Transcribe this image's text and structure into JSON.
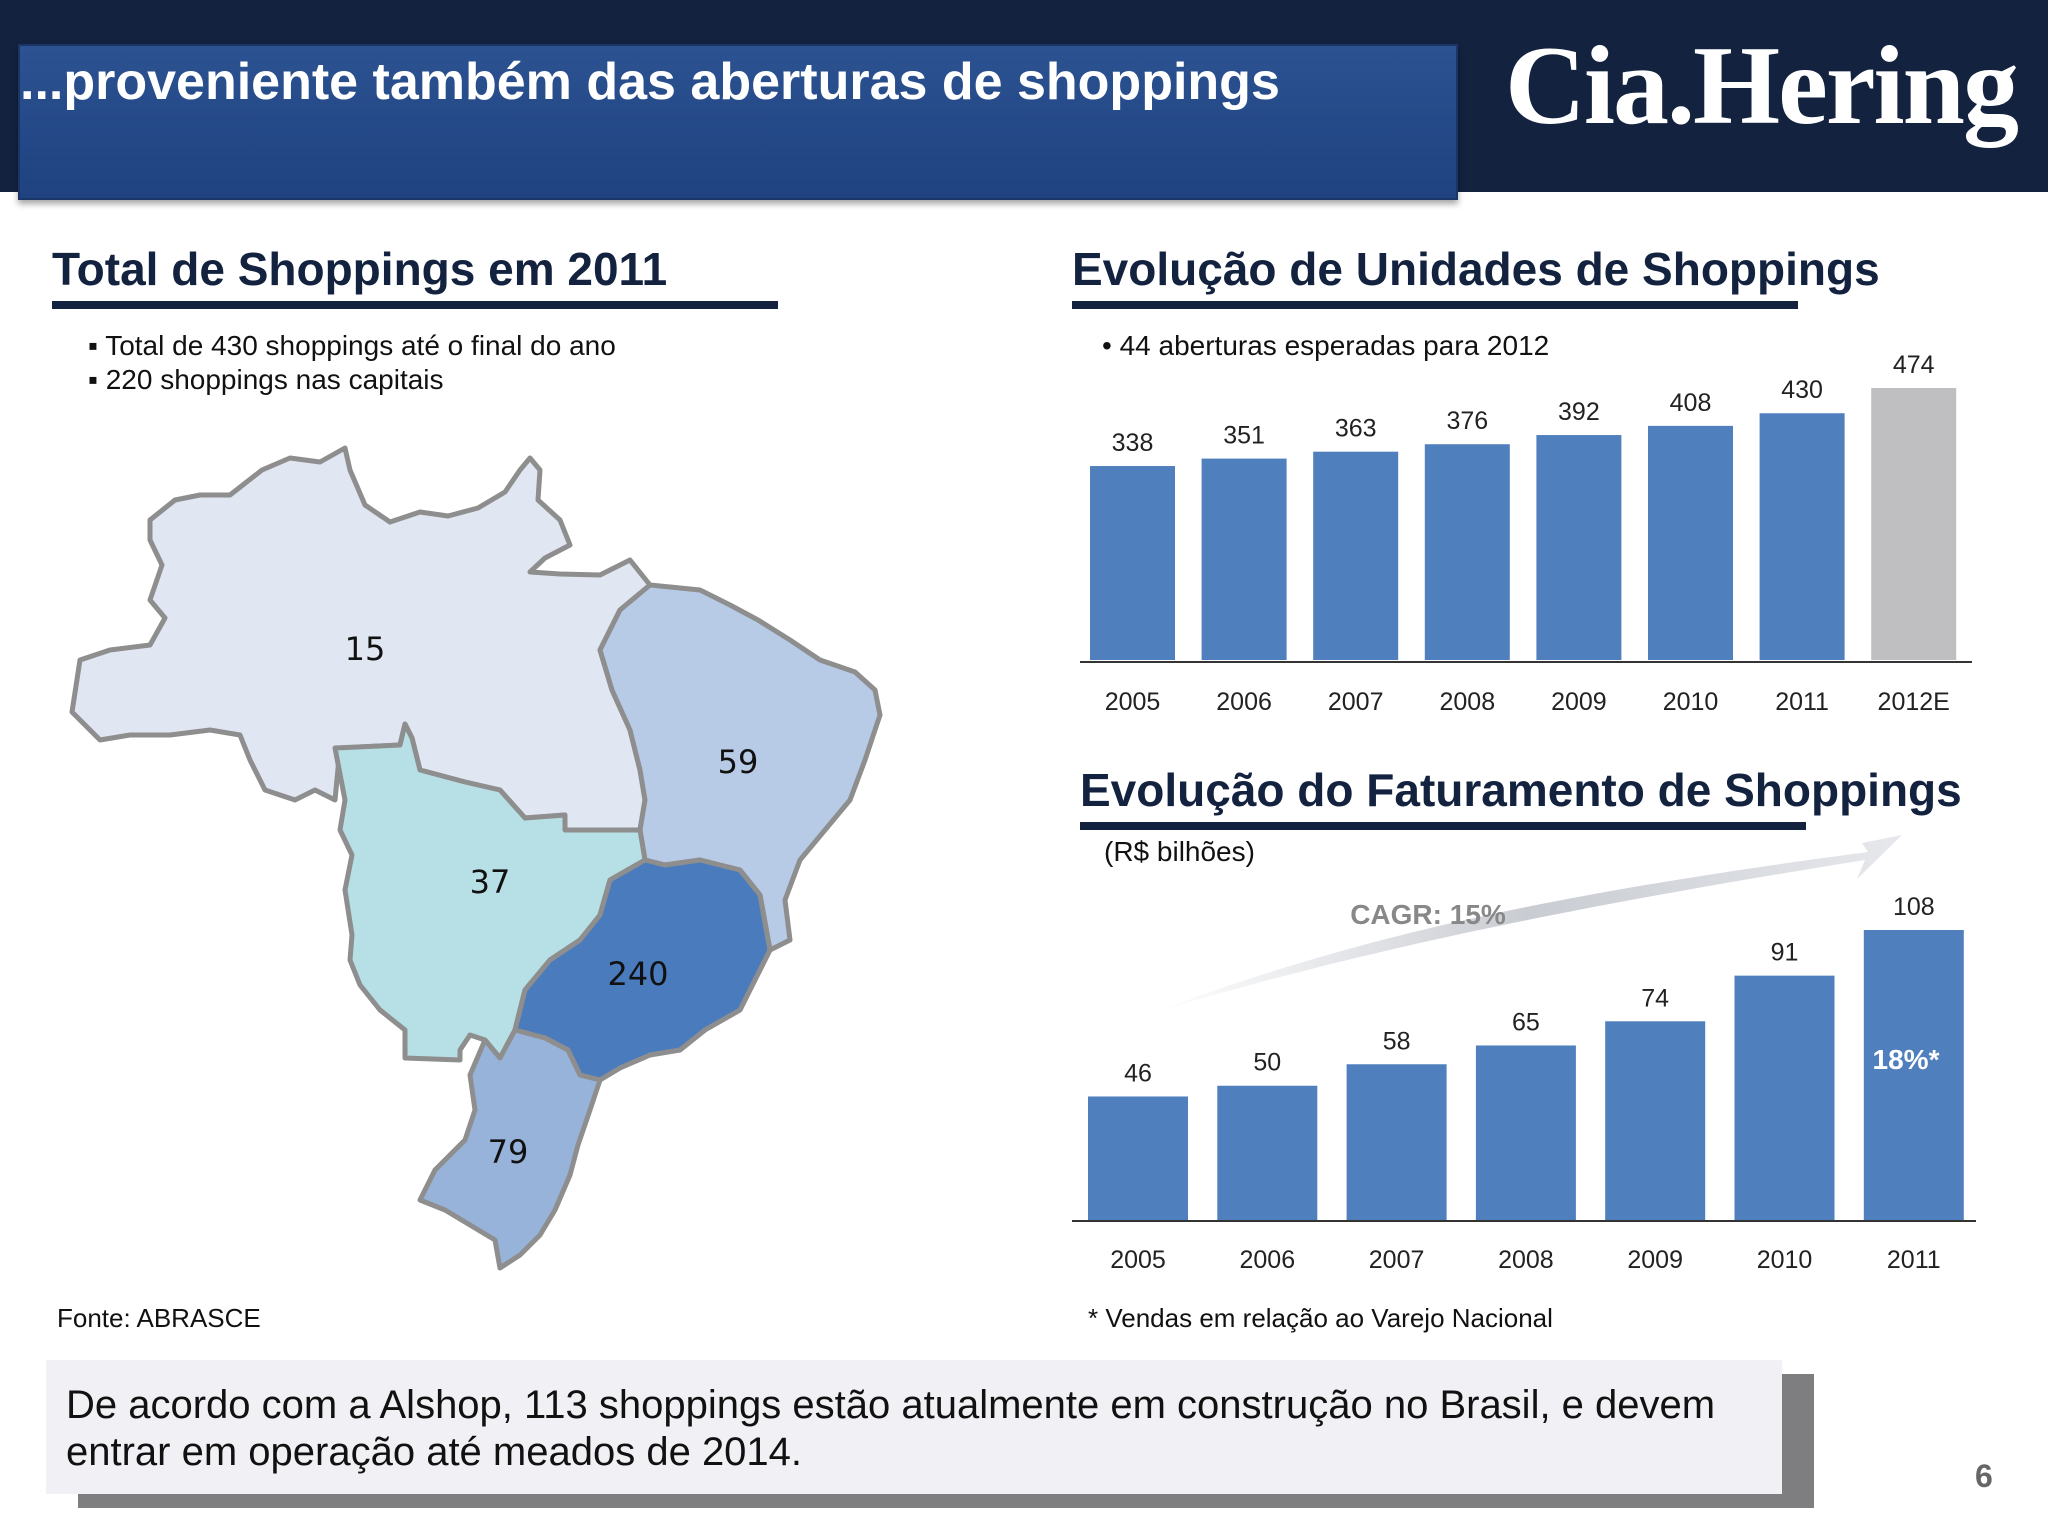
{
  "header": {
    "title": "...proveniente também das aberturas de shoppings",
    "logo": "Cia.Hering"
  },
  "left": {
    "section_title": "Total de Shoppings em 2011",
    "bullets": [
      "Total de 430  shoppings até o final do ano",
      "220 shoppings nas capitais"
    ],
    "source": "Fonte: ABRASCE"
  },
  "right_top": {
    "section_title": "Evolução de Unidades de Shoppings",
    "note": "• 44 aberturas esperadas para 2012"
  },
  "right_bottom": {
    "section_title": "Evolução do Faturamento de Shoppings",
    "unit": "(R$ bilhões)",
    "cagr": "CAGR: 15%",
    "inside_label": "18%*",
    "footnote": "* Vendas em relação ao Varejo Nacional"
  },
  "bottom_box": {
    "text": "De acordo com a Alshop, 113 shoppings estão atualmente em construção no Brasil, e devem entrar em operação até meados de 2014."
  },
  "page_number": "6",
  "colors": {
    "bar_blue": "#4f7fbd",
    "bar_gray": "#bfbfc1",
    "navy": "#13223f",
    "region_north": "#e0e6f2",
    "region_midwest": "#b7dfe6",
    "region_northeast": "#b7cbe6",
    "region_southeast": "#4a7bbd",
    "region_south": "#98b3da"
  },
  "chart_data": [
    {
      "type": "map",
      "title": "Total de Shoppings em 2011",
      "regions": [
        {
          "value": 15,
          "color": "#e0e6f2"
        },
        {
          "value": 37,
          "color": "#b7dfe6"
        },
        {
          "value": 59,
          "color": "#b7cbe6"
        },
        {
          "value": 240,
          "color": "#4a7bbd"
        },
        {
          "value": 79,
          "color": "#98b3da"
        }
      ]
    },
    {
      "type": "bar",
      "title": "Evolução de Unidades de Shoppings",
      "categories": [
        "2005",
        "2006",
        "2007",
        "2008",
        "2009",
        "2010",
        "2011",
        "2012E"
      ],
      "values": [
        338,
        351,
        363,
        376,
        392,
        408,
        430,
        474
      ],
      "colors": [
        "#4f7fbd",
        "#4f7fbd",
        "#4f7fbd",
        "#4f7fbd",
        "#4f7fbd",
        "#4f7fbd",
        "#4f7fbd",
        "#bfbfc1"
      ],
      "ylim": [
        0,
        474
      ],
      "grid": false,
      "legend": "none"
    },
    {
      "type": "bar",
      "title": "Evolução do Faturamento de Shoppings",
      "ylabel": "(R$ bilhões)",
      "categories": [
        "2005",
        "2006",
        "2007",
        "2008",
        "2009",
        "2010",
        "2011"
      ],
      "values": [
        46,
        50,
        58,
        65,
        74,
        91,
        108
      ],
      "ylim": [
        0,
        108
      ],
      "annotations": [
        "CAGR: 15%",
        "18%*"
      ],
      "grid": false,
      "legend": "none"
    }
  ]
}
